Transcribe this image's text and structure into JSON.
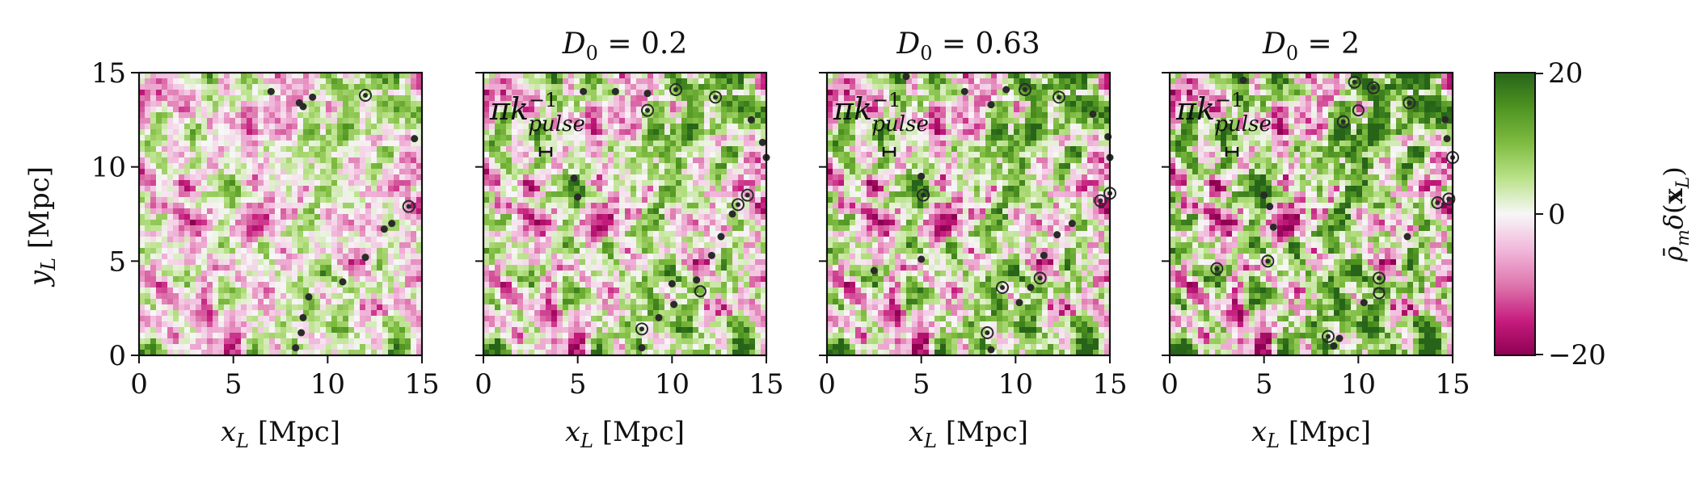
{
  "chart_data": {
    "type": "heatmap",
    "colormap": "PiYG",
    "colors": {
      "low": "#8e0152",
      "mid": "#f7f7f7",
      "high": "#276419",
      "marker": "#2a2a2a"
    },
    "shared_y_label": "y_L [Mpc]",
    "colorbar": {
      "label": "ρ̄_m δ(x_L)",
      "min": -20,
      "max": 20,
      "ticks": [
        "20",
        "0",
        "−20"
      ]
    },
    "panels": [
      {
        "title": "",
        "xlabel": "x_L [Mpc]",
        "xlim": [
          0,
          15
        ],
        "ylim": [
          0,
          15
        ],
        "xticks": [
          "0",
          "5",
          "10",
          "15"
        ],
        "yticks": [
          "0",
          "5",
          "10",
          "15"
        ],
        "show_yticklabels": true,
        "annotation": null,
        "markers": [
          [
            7.0,
            14.0,
            "dot"
          ],
          [
            8.5,
            13.4,
            "dot"
          ],
          [
            8.7,
            13.2,
            "dot"
          ],
          [
            9.2,
            13.7,
            "dot"
          ],
          [
            12.0,
            13.8,
            "ring"
          ],
          [
            14.6,
            11.5,
            "dot"
          ],
          [
            14.3,
            7.9,
            "ring"
          ],
          [
            13.4,
            7.0,
            "dot"
          ],
          [
            13.0,
            6.7,
            "dot"
          ],
          [
            12.0,
            5.2,
            "dot"
          ],
          [
            10.8,
            3.9,
            "dot"
          ],
          [
            9.0,
            3.1,
            "dot"
          ],
          [
            8.7,
            2.0,
            "dot"
          ],
          [
            8.6,
            1.2,
            "dot"
          ],
          [
            8.3,
            0.4,
            "dot"
          ]
        ]
      },
      {
        "title": "D_0 = 0.2",
        "xlabel": "x_L [Mpc]",
        "xlim": [
          0,
          15
        ],
        "ylim": [
          0,
          15
        ],
        "xticks": [
          "0",
          "5",
          "10",
          "15"
        ],
        "yticks": [
          "0",
          "5",
          "10",
          "15"
        ],
        "show_yticklabels": false,
        "annotation": {
          "text": "πk",
          "sup": "−1",
          "sub": "pulse",
          "bar_x": [
            3.0,
            3.6
          ],
          "bar_y": 10.8
        },
        "markers": [
          [
            5.3,
            14.0,
            "dot"
          ],
          [
            7.0,
            14.0,
            "dot"
          ],
          [
            8.7,
            13.9,
            "dot"
          ],
          [
            10.2,
            14.1,
            "ring"
          ],
          [
            8.7,
            13.0,
            "ring"
          ],
          [
            12.3,
            13.7,
            "ring"
          ],
          [
            14.2,
            12.5,
            "dot"
          ],
          [
            14.8,
            11.3,
            "dot"
          ],
          [
            15.0,
            10.5,
            "dot"
          ],
          [
            4.8,
            9.4,
            "dot"
          ],
          [
            5.0,
            8.4,
            "dot"
          ],
          [
            14.0,
            8.5,
            "ring"
          ],
          [
            13.5,
            8.0,
            "ring"
          ],
          [
            13.2,
            7.5,
            "dot"
          ],
          [
            12.6,
            6.3,
            "dot"
          ],
          [
            12.1,
            5.3,
            "dot"
          ],
          [
            11.3,
            4.0,
            "dot"
          ],
          [
            11.5,
            3.4,
            "hollow"
          ],
          [
            10.0,
            3.8,
            "dot"
          ],
          [
            8.4,
            1.4,
            "ring"
          ],
          [
            10.1,
            2.7,
            "dot"
          ],
          [
            9.3,
            2.0,
            "dot"
          ],
          [
            8.4,
            0.4,
            "dot"
          ]
        ]
      },
      {
        "title": "D_0 = 0.63",
        "xlabel": "x_L [Mpc]",
        "xlim": [
          0,
          15
        ],
        "ylim": [
          0,
          15
        ],
        "xticks": [
          "0",
          "5",
          "10",
          "15"
        ],
        "yticks": [
          "0",
          "5",
          "10",
          "15"
        ],
        "show_yticklabels": false,
        "annotation": {
          "text": "πk",
          "sup": "−1",
          "sub": "pulse",
          "bar_x": [
            3.0,
            3.6
          ],
          "bar_y": 10.8
        },
        "markers": [
          [
            4.2,
            14.8,
            "dot"
          ],
          [
            7.3,
            14.0,
            "dot"
          ],
          [
            9.5,
            14.1,
            "dot"
          ],
          [
            10.5,
            14.1,
            "ring"
          ],
          [
            12.3,
            13.7,
            "ring"
          ],
          [
            8.7,
            13.3,
            "dot"
          ],
          [
            14.1,
            12.8,
            "dot"
          ],
          [
            14.9,
            11.6,
            "dot"
          ],
          [
            15.0,
            10.5,
            "dot"
          ],
          [
            5.0,
            9.5,
            "dot"
          ],
          [
            5.1,
            8.5,
            "ring"
          ],
          [
            13.0,
            7.0,
            "dot"
          ],
          [
            14.5,
            8.2,
            "ring"
          ],
          [
            15.0,
            8.6,
            "ring"
          ],
          [
            12.2,
            6.4,
            "dot"
          ],
          [
            11.5,
            5.3,
            "dot"
          ],
          [
            2.5,
            4.5,
            "dot"
          ],
          [
            5.0,
            5.1,
            "dot"
          ],
          [
            11.3,
            4.1,
            "ring"
          ],
          [
            10.8,
            3.6,
            "dot"
          ],
          [
            9.3,
            3.6,
            "ring"
          ],
          [
            10.2,
            2.8,
            "dot"
          ],
          [
            8.5,
            1.2,
            "ring"
          ],
          [
            8.7,
            0.3,
            "dot"
          ]
        ]
      },
      {
        "title": "D_0 = 2",
        "xlabel": "x_L [Mpc]",
        "xlim": [
          0,
          15
        ],
        "ylim": [
          0,
          15
        ],
        "xticks": [
          "0",
          "5",
          "10",
          "15"
        ],
        "yticks": [
          "0",
          "5",
          "10",
          "15"
        ],
        "show_yticklabels": false,
        "annotation": {
          "text": "πk",
          "sup": "−1",
          "sub": "pulse",
          "bar_x": [
            3.0,
            3.6
          ],
          "bar_y": 10.8
        },
        "markers": [
          [
            3.9,
            14.6,
            "dot"
          ],
          [
            9.8,
            14.5,
            "ring"
          ],
          [
            10.8,
            14.2,
            "ring"
          ],
          [
            12.7,
            13.4,
            "ring"
          ],
          [
            10.0,
            13.0,
            "hollow"
          ],
          [
            9.2,
            12.4,
            "ring"
          ],
          [
            14.6,
            12.5,
            "dot"
          ],
          [
            14.7,
            11.5,
            "dot"
          ],
          [
            15.0,
            10.5,
            "ring"
          ],
          [
            5.0,
            8.5,
            "dot"
          ],
          [
            5.3,
            7.9,
            "dot"
          ],
          [
            14.2,
            8.1,
            "ring"
          ],
          [
            14.8,
            8.3,
            "ring"
          ],
          [
            5.5,
            6.8,
            "dot"
          ],
          [
            5.2,
            5.0,
            "ring"
          ],
          [
            12.6,
            6.3,
            "dot"
          ],
          [
            2.5,
            4.6,
            "ring"
          ],
          [
            11.1,
            4.1,
            "ring"
          ],
          [
            11.1,
            3.3,
            "hollow"
          ],
          [
            10.3,
            2.8,
            "dot"
          ],
          [
            8.4,
            1.0,
            "ring"
          ],
          [
            8.7,
            0.5,
            "dot"
          ],
          [
            9.0,
            0.9,
            "dot"
          ]
        ]
      }
    ]
  }
}
